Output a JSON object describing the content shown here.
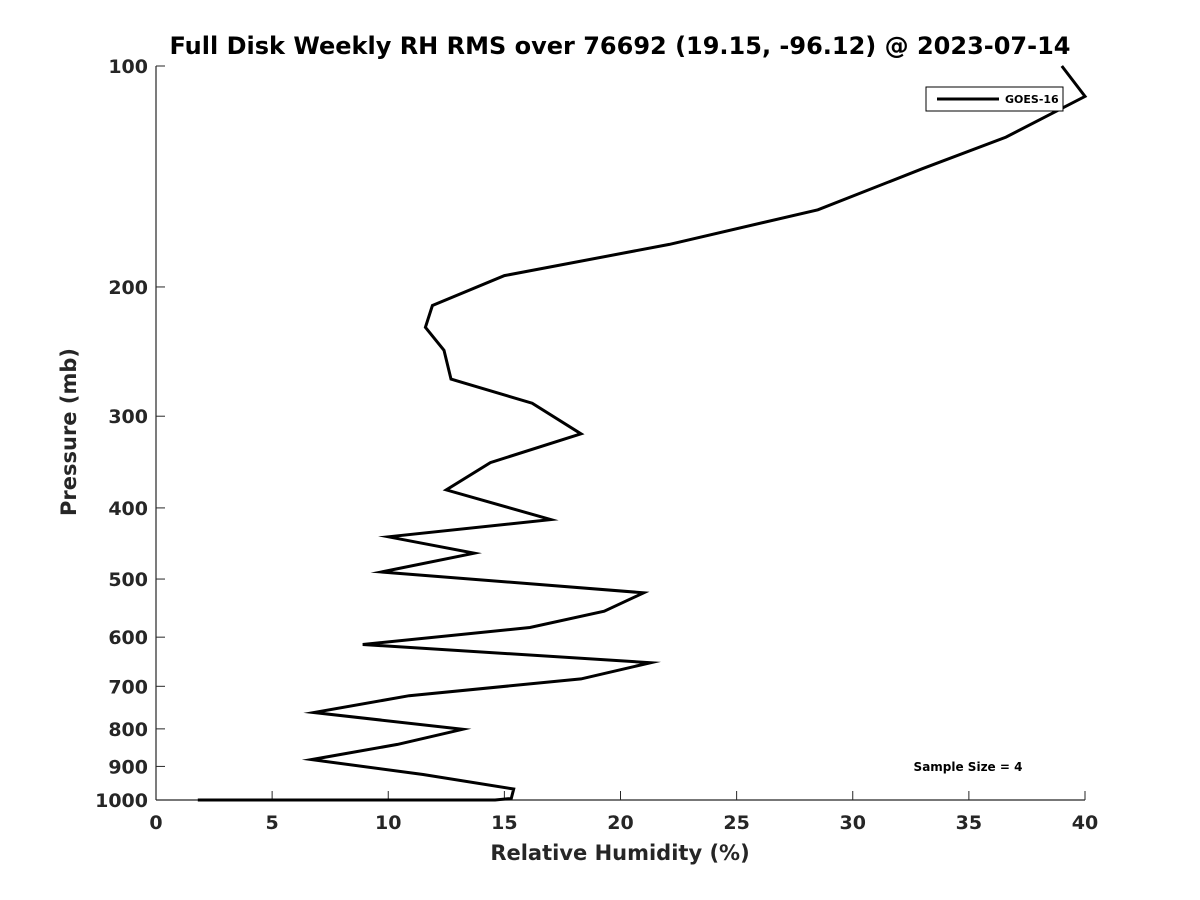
{
  "chart_data": {
    "type": "line",
    "title": "Full Disk Weekly RH RMS over 76692 (19.15, -96.12) @ 2023-07-14",
    "xlabel": "Relative Humidity (%)",
    "ylabel": "Pressure (mb)",
    "xlim": [
      0,
      40
    ],
    "ylim": [
      1000,
      100
    ],
    "yscale": "log",
    "y_reversed": true,
    "x_ticks": [
      "0",
      "5",
      "10",
      "15",
      "20",
      "25",
      "30",
      "35",
      "40"
    ],
    "y_ticks": [
      "100",
      "200",
      "300",
      "400",
      "500",
      "600",
      "700",
      "800",
      "900",
      "1000"
    ],
    "grid": false,
    "legend_position": "top-right",
    "annotation": "Sample Size = 4",
    "series": [
      {
        "name": "GOES-16",
        "color": "#000000",
        "x": [
          39.0,
          40.0,
          36.6,
          33.0,
          28.5,
          22.1,
          15.0,
          11.9,
          11.6,
          12.4,
          12.7,
          16.2,
          18.3,
          14.4,
          12.5,
          17.0,
          10.0,
          13.7,
          9.7,
          21.0,
          19.3,
          16.1,
          8.9,
          21.3,
          18.3,
          10.9,
          6.8,
          13.2,
          10.4,
          6.7,
          11.5,
          15.4,
          15.3,
          14.6,
          13.3,
          11.3,
          8.6,
          7.0,
          4.7,
          1.8,
          5.5,
          5.5,
          10.6,
          9.0,
          4.7
        ],
        "y": [
          100,
          110,
          125,
          138,
          157,
          175,
          193,
          212,
          227,
          244,
          267,
          288,
          317,
          347,
          378,
          415,
          438,
          461,
          489,
          522,
          553,
          582,
          614,
          650,
          684,
          721,
          760,
          801,
          840,
          881,
          923,
          966,
          995,
          1000,
          1000,
          1000,
          1000,
          1000,
          1000,
          1000,
          1000,
          1000,
          1000,
          1000,
          1000
        ]
      }
    ]
  }
}
